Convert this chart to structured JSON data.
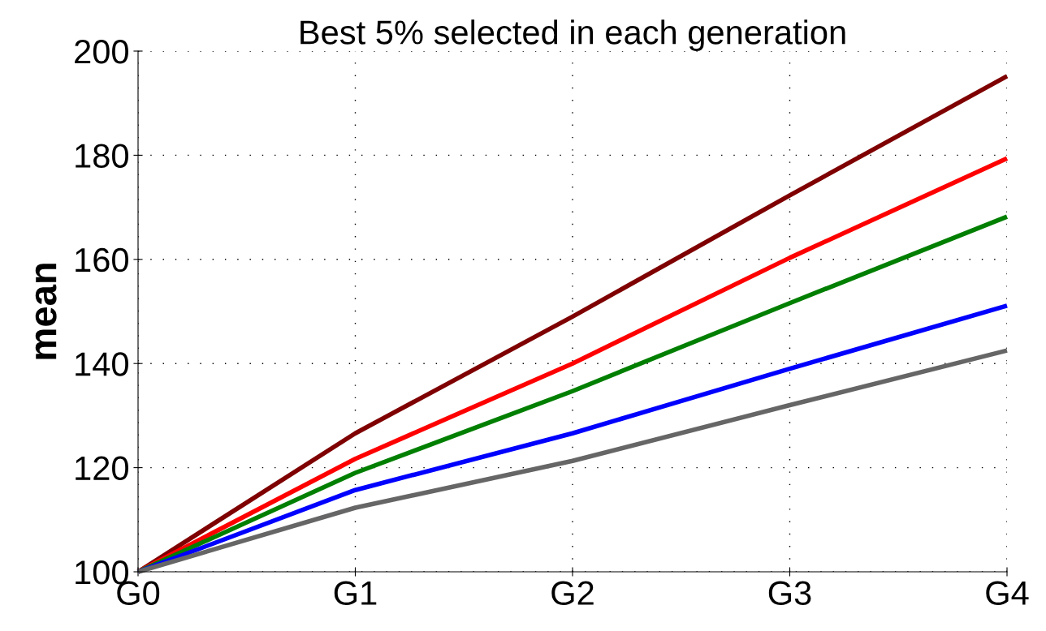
{
  "chart_data": {
    "type": "line",
    "title": "Best 5% selected in each generation",
    "ylabel": "mean",
    "categories": [
      "G0",
      "G1",
      "G2",
      "G3",
      "G4"
    ],
    "series": [
      {
        "color": "#7f0000",
        "values": [
          100,
          126.6,
          149,
          172.3,
          195.2
        ]
      },
      {
        "color": "#ff0000",
        "values": [
          100,
          121.7,
          140,
          160.3,
          179.4
        ]
      },
      {
        "color": "#007f00",
        "values": [
          100,
          119,
          134.7,
          151.6,
          168.2
        ]
      },
      {
        "color": "#0000ff",
        "values": [
          100,
          115.7,
          126.6,
          139,
          151.1
        ]
      },
      {
        "color": "#666666",
        "values": [
          100,
          112.3,
          121.3,
          132,
          142.5
        ]
      }
    ],
    "ylim": [
      100,
      200
    ],
    "yticks": [
      100,
      120,
      140,
      160,
      180,
      200
    ],
    "grid": true,
    "line_style": "solid",
    "marker": "none",
    "legend": false
  }
}
